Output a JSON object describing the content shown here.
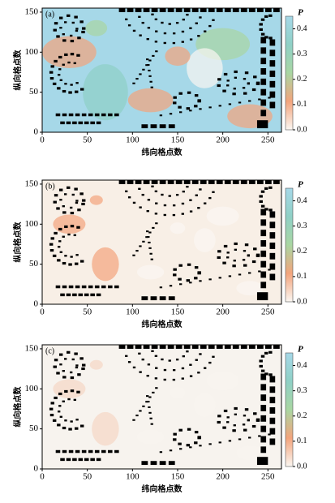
{
  "chart_data": [
    {
      "type": "heatmap",
      "label": "(a)",
      "xlabel": "纬向格点数",
      "ylabel": "纵向格点数",
      "xlim": [
        0,
        265
      ],
      "ylim": [
        0,
        155
      ],
      "xticks": [
        0,
        50,
        100,
        150,
        200,
        250
      ],
      "yticks": [
        0,
        50,
        100,
        150
      ],
      "colorbar_label": "P",
      "clim": [
        0,
        0.45
      ],
      "cticks": [
        {
          "value": 0,
          "label": "0.0"
        },
        {
          "value": 0.1,
          "label": "0.1"
        },
        {
          "value": 0.2,
          "label": "0.2"
        },
        {
          "value": 0.3,
          "label": "0.3"
        },
        {
          "value": 0.4,
          "label": "0.4"
        }
      ],
      "colormap": [
        "#fbf7f2",
        "#f3a47c",
        "#a9d6a2",
        "#8fd0c6",
        "#a6d8e8"
      ],
      "field_color": "#a6d8e8"
    },
    {
      "type": "heatmap",
      "label": "(b)",
      "xlabel": "纬向格点数",
      "ylabel": "纵向格点数",
      "xlim": [
        0,
        265
      ],
      "ylim": [
        0,
        155
      ],
      "xticks": [
        0,
        50,
        100,
        150,
        200,
        250
      ],
      "yticks": [
        0,
        50,
        100,
        150
      ],
      "colorbar_label": "P",
      "clim": [
        0,
        0.45
      ],
      "cticks": [
        {
          "value": 0,
          "label": "0.0"
        },
        {
          "value": 0.1,
          "label": "0.1"
        },
        {
          "value": 0.2,
          "label": "0.2"
        },
        {
          "value": 0.3,
          "label": "0.3"
        },
        {
          "value": 0.4,
          "label": "0.4"
        }
      ],
      "colormap": [
        "#fbf7f2",
        "#f3a47c",
        "#a9d6a2",
        "#8fd0c6",
        "#a6d8e8"
      ],
      "field_color": "#f8efe6"
    },
    {
      "type": "heatmap",
      "label": "(c)",
      "xlabel": "纬向格点数",
      "ylabel": "纵向格点数",
      "xlim": [
        0,
        265
      ],
      "ylim": [
        0,
        155
      ],
      "xticks": [
        0,
        50,
        100,
        150,
        200,
        250
      ],
      "yticks": [
        0,
        50,
        100,
        150
      ],
      "colorbar_label": "P",
      "clim": [
        0,
        0.45
      ],
      "cticks": [
        {
          "value": 0,
          "label": "0.0"
        },
        {
          "value": 0.1,
          "label": "0.1"
        },
        {
          "value": 0.2,
          "label": "0.2"
        },
        {
          "value": 0.3,
          "label": "0.3"
        },
        {
          "value": 0.4,
          "label": "0.4"
        }
      ],
      "colormap": [
        "#fbf7f2",
        "#f3a47c",
        "#a9d6a2",
        "#8fd0c6",
        "#a6d8e8"
      ],
      "field_color": "#f7f3ee"
    }
  ]
}
